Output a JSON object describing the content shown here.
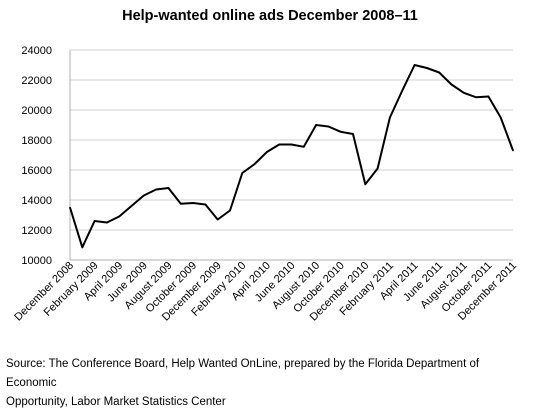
{
  "chart_data": {
    "type": "line",
    "title": "Help-wanted online ads December 2008–11",
    "xlabel": "",
    "ylabel": "",
    "ylim": [
      10000,
      24000
    ],
    "yticks": [
      "10000",
      "12000",
      "14000",
      "16000",
      "18000",
      "20000",
      "22000",
      "24000"
    ],
    "grid": "horizontal",
    "legend": "none",
    "line_color": "#000000",
    "x": [
      "December 2008",
      "January 2009",
      "February 2009",
      "March 2009",
      "April 2009",
      "May 2009",
      "June 2009",
      "July 2009",
      "August 2009",
      "September 2009",
      "October 2009",
      "November 2009",
      "December 2009",
      "January 2010",
      "February 2010",
      "March 2010",
      "April 2010",
      "May 2010",
      "June 2010",
      "July 2010",
      "August 2010",
      "September 2010",
      "October 2010",
      "November 2010",
      "December 2010",
      "January 2011",
      "February 2011",
      "March 2011",
      "April 2011",
      "May 2011",
      "June 2011",
      "July 2011",
      "August 2011",
      "September 2011",
      "October 2011",
      "November 2011",
      "December 2011"
    ],
    "xtick_labels": [
      "December 2008",
      "February 2009",
      "April 2009",
      "June 2009",
      "August 2009",
      "October 2009",
      "December 2009",
      "February 2010",
      "April 2010",
      "June 2010",
      "August 2010",
      "October 2010",
      "December 2010",
      "February 2011",
      "April 2011",
      "June 2011",
      "August 2011",
      "October 2011",
      "December 2011"
    ],
    "series": [
      {
        "values": [
          13500,
          10850,
          12600,
          12500,
          12900,
          13600,
          14300,
          14700,
          14800,
          13750,
          13800,
          13700,
          12700,
          13300,
          15800,
          16400,
          17200,
          17700,
          17700,
          17550,
          19000,
          18900,
          18550,
          18400,
          15050,
          16100,
          19500,
          21300,
          23000,
          22800,
          22500,
          21700,
          21150,
          20850,
          20900,
          19500,
          17300
        ]
      }
    ]
  },
  "source": {
    "line1": "Source: The Conference Board, Help Wanted OnLine, prepared by the Florida Department of Economic",
    "line2": "Opportunity, Labor Market Statistics Center"
  }
}
